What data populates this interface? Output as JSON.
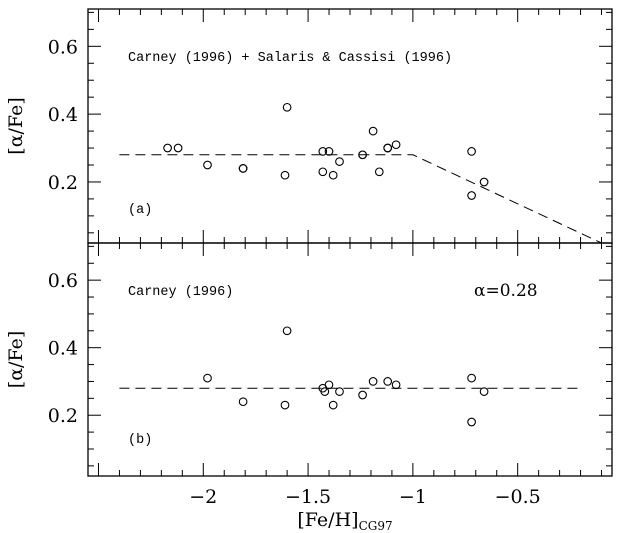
{
  "chart_data": [
    {
      "type": "scatter",
      "panel_tag": "(a)",
      "title": "Carney (1996) + Salaris & Cassisi (1996)",
      "annotation": "",
      "xlabel": "",
      "ylabel": "[α/Fe]",
      "xlim": [
        -2.55,
        -0.05
      ],
      "ylim": [
        0.02,
        0.71
      ],
      "yticks": [
        0.2,
        0.4,
        0.6
      ],
      "ytick_labels": [
        "0.2",
        "0.4",
        "0.6"
      ],
      "xticks": [
        -2,
        -1.5,
        -1,
        -0.5
      ],
      "xtick_labels": [
        "",
        "",
        "",
        ""
      ],
      "points": [
        {
          "x": -2.17,
          "y": 0.3
        },
        {
          "x": -2.12,
          "y": 0.3
        },
        {
          "x": -1.98,
          "y": 0.25
        },
        {
          "x": -1.81,
          "y": 0.24
        },
        {
          "x": -1.81,
          "y": 0.24
        },
        {
          "x": -1.61,
          "y": 0.22
        },
        {
          "x": -1.6,
          "y": 0.42
        },
        {
          "x": -1.43,
          "y": 0.29
        },
        {
          "x": -1.43,
          "y": 0.23
        },
        {
          "x": -1.4,
          "y": 0.29
        },
        {
          "x": -1.38,
          "y": 0.22
        },
        {
          "x": -1.35,
          "y": 0.26
        },
        {
          "x": -1.24,
          "y": 0.28
        },
        {
          "x": -1.24,
          "y": 0.28
        },
        {
          "x": -1.19,
          "y": 0.35
        },
        {
          "x": -1.16,
          "y": 0.23
        },
        {
          "x": -1.12,
          "y": 0.3
        },
        {
          "x": -1.12,
          "y": 0.3
        },
        {
          "x": -1.08,
          "y": 0.31
        },
        {
          "x": -0.72,
          "y": 0.29
        },
        {
          "x": -0.72,
          "y": 0.16
        },
        {
          "x": -0.66,
          "y": 0.2
        }
      ],
      "fit_line": {
        "x": [
          -2.4,
          -1.0,
          -0.1
        ],
        "y": [
          0.28,
          0.28,
          0.02
        ]
      }
    },
    {
      "type": "scatter",
      "panel_tag": "(b)",
      "title": "Carney (1996)",
      "annotation": "α=0.28",
      "xlabel": "[Fe/H]CG97",
      "ylabel": "[α/Fe]",
      "xlim": [
        -2.55,
        -0.05
      ],
      "ylim": [
        0.02,
        0.71
      ],
      "yticks": [
        0.2,
        0.4,
        0.6
      ],
      "ytick_labels": [
        "0.2",
        "0.4",
        "0.6"
      ],
      "xticks": [
        -2,
        -1.5,
        -1,
        -0.5
      ],
      "xtick_labels": [
        "−2",
        "−1.5",
        "−1",
        "−0.5"
      ],
      "points": [
        {
          "x": -1.98,
          "y": 0.31
        },
        {
          "x": -1.81,
          "y": 0.24
        },
        {
          "x": -1.61,
          "y": 0.23
        },
        {
          "x": -1.6,
          "y": 0.45
        },
        {
          "x": -1.43,
          "y": 0.28
        },
        {
          "x": -1.42,
          "y": 0.27
        },
        {
          "x": -1.4,
          "y": 0.29
        },
        {
          "x": -1.38,
          "y": 0.23
        },
        {
          "x": -1.35,
          "y": 0.27
        },
        {
          "x": -1.24,
          "y": 0.26
        },
        {
          "x": -1.19,
          "y": 0.3
        },
        {
          "x": -1.12,
          "y": 0.3
        },
        {
          "x": -1.08,
          "y": 0.29
        },
        {
          "x": -0.72,
          "y": 0.31
        },
        {
          "x": -0.72,
          "y": 0.18
        },
        {
          "x": -0.66,
          "y": 0.27
        }
      ],
      "fit_line": {
        "x": [
          -2.4,
          -0.2
        ],
        "y": [
          0.28,
          0.28
        ]
      }
    }
  ],
  "xlabel_parts": {
    "main": "[Fe/H]",
    "sub": "CG97"
  }
}
